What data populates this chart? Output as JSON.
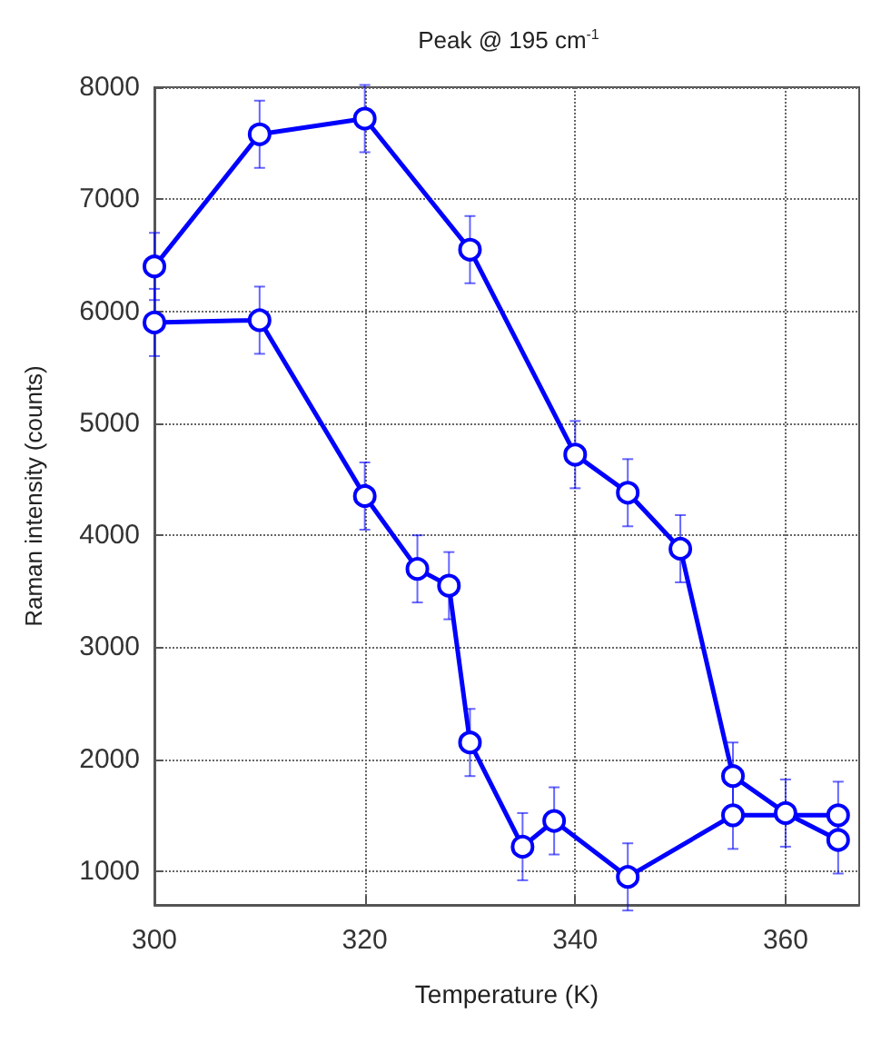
{
  "chart_data": {
    "type": "line",
    "title": "Peak @ 195 cm$^{-1}$",
    "xlabel": "Temperature (K)",
    "ylabel": "Raman intensity (counts)",
    "series": [
      {
        "color": "#0000ff",
        "x": [
          300,
          310,
          320,
          330,
          340,
          345,
          350,
          355,
          360,
          365
        ],
        "values": [
          6400,
          7580,
          7720,
          6550,
          4720,
          4380,
          3880,
          1850,
          1520,
          1280
        ],
        "errors": [
          300,
          300,
          300,
          300,
          300,
          300,
          300,
          300,
          300,
          300
        ]
      },
      {
        "color": "#0000ff",
        "x": [
          300,
          310,
          320,
          325,
          328,
          330,
          335,
          338,
          345,
          355,
          365
        ],
        "values": [
          5900,
          5920,
          4350,
          3700,
          3550,
          2150,
          1220,
          1450,
          950,
          1500,
          1500
        ],
        "errors": [
          300,
          300,
          300,
          300,
          300,
          300,
          300,
          300,
          300,
          300,
          300
        ]
      }
    ],
    "xlim": [
      300,
      367
    ],
    "xticks": [
      300,
      320,
      340,
      360
    ],
    "ylim": [
      700,
      8000
    ],
    "yticks": [
      1000,
      2000,
      3000,
      4000,
      5000,
      6000,
      7000,
      8000
    ],
    "grid": true,
    "marker": "circle",
    "line_style": "solid"
  }
}
